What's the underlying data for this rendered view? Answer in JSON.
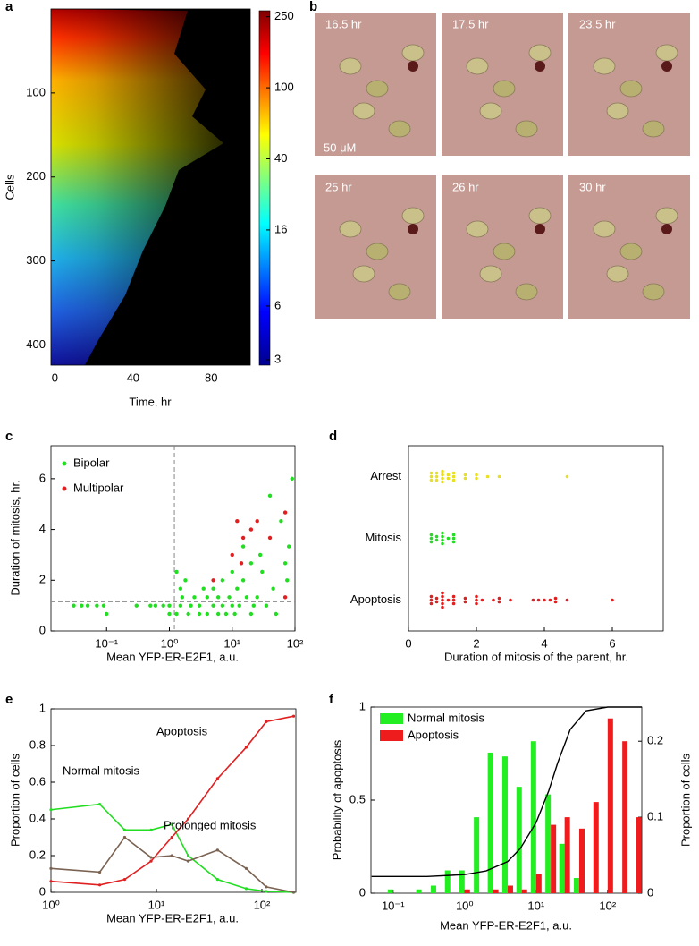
{
  "chart_data": [
    {
      "type": "heatmap",
      "panel": "a",
      "xlabel": "Time, hr",
      "ylabel": "Cells",
      "xlim": [
        -2,
        100
      ],
      "xticks": [
        0,
        40,
        80
      ],
      "ylim": [
        424,
        0
      ],
      "yticks": [
        100,
        200,
        300,
        400
      ],
      "colorbar": {
        "clim": [
          2.8,
          270
        ],
        "ticks": [
          3,
          6,
          16,
          40,
          100,
          250
        ],
        "log": true,
        "colormap": "jet"
      }
    },
    {
      "type": "scatter",
      "panel": "c",
      "xlabel": "Mean YFP-ER-E2F1, a.u.",
      "ylabel": "Duration of mitosis, hr.",
      "xlog": true,
      "xlim": [
        0.013,
        100
      ],
      "xticks": [
        {
          "value": 0.1,
          "label": "10⁻¹"
        },
        {
          "value": 1,
          "label": "10⁰"
        },
        {
          "value": 10,
          "label": "10¹"
        },
        {
          "value": 100,
          "label": "10²"
        }
      ],
      "ylim": [
        0,
        7.3
      ],
      "yticks": [
        0,
        2,
        4,
        6
      ],
      "legend": "upper left",
      "vline": 1.2,
      "hline": 1.15,
      "series": [
        {
          "name": "Bipolar",
          "color": "#22dd22",
          "x": [
            0.03,
            0.04,
            0.05,
            0.07,
            0.09,
            0.1,
            0.3,
            0.5,
            0.6,
            0.8,
            1,
            1,
            1.3,
            1.5,
            1.6,
            1.8,
            2,
            2.2,
            2.5,
            3,
            3,
            3.5,
            4,
            4,
            5,
            5,
            6,
            6,
            7,
            7,
            8,
            9,
            10,
            10,
            11,
            12,
            13,
            15,
            15,
            17,
            20,
            20,
            22,
            25,
            28,
            30,
            35,
            40,
            45,
            50,
            60,
            70,
            75,
            80,
            90,
            1.3,
            1.5
          ],
          "values": [
            1,
            1,
            1,
            1,
            1,
            0.67,
            1,
            1,
            1,
            1,
            1,
            0.67,
            0.67,
            1,
            1.33,
            2,
            0.67,
            1,
            1.33,
            0.67,
            1,
            1.67,
            1.33,
            0.67,
            1,
            1.67,
            0.67,
            1.33,
            1,
            2,
            0.67,
            1.33,
            1,
            2.33,
            0.67,
            1.67,
            1,
            2,
            3.33,
            1.33,
            0.67,
            2.67,
            1,
            1.33,
            3,
            2.33,
            1,
            5.33,
            1.67,
            0.67,
            4.33,
            2.67,
            2,
            3.33,
            6,
            2.33,
            1.67
          ]
        },
        {
          "name": "Multipolar",
          "color": "#e02020",
          "x": [
            5,
            10,
            12,
            14,
            15,
            20,
            25,
            40,
            70,
            70
          ],
          "values": [
            2,
            3,
            4.33,
            2.67,
            3.67,
            4,
            4.33,
            3.67,
            4.67,
            1.33
          ]
        }
      ]
    },
    {
      "type": "strip",
      "panel": "d",
      "xlabel": "Duration of mitosis of the parent, hr.",
      "xlim": [
        0,
        7.5
      ],
      "xticks": [
        0,
        2,
        4,
        6
      ],
      "series": [
        {
          "name": "Arrest",
          "color": "#e8e020",
          "values": [
            0.67,
            0.67,
            0.67,
            0.83,
            0.83,
            0.83,
            1,
            1,
            1,
            1,
            1.17,
            1.17,
            1.33,
            1.33,
            1.33,
            1.67,
            1.67,
            2,
            2,
            2.33,
            2.67,
            4.67
          ]
        },
        {
          "name": "Mitosis",
          "color": "#22dd22",
          "values": [
            0.67,
            0.67,
            0.67,
            0.83,
            0.83,
            1,
            1,
            1,
            1,
            1.17,
            1.33,
            1.33,
            1.33
          ]
        },
        {
          "name": "Apoptosis",
          "color": "#e02020",
          "values": [
            0.67,
            0.67,
            0.67,
            0.83,
            0.83,
            1,
            1,
            1,
            1,
            1,
            1.17,
            1.33,
            1.33,
            1.33,
            1.67,
            1.67,
            2,
            2,
            2,
            2.17,
            2.5,
            2.67,
            2.67,
            3,
            3.67,
            3.83,
            4,
            4.17,
            4.33,
            4.33,
            4.67,
            6
          ]
        }
      ]
    },
    {
      "type": "line",
      "panel": "e",
      "xlabel": "Mean YFP-ER-E2F1, a.u.",
      "ylabel": "Proportion of cells",
      "xlog": true,
      "xlim": [
        1,
        210
      ],
      "xticks": [
        {
          "value": 1,
          "label": "10⁰"
        },
        {
          "value": 10,
          "label": "10¹"
        },
        {
          "value": 100,
          "label": "10²"
        }
      ],
      "ylim": [
        0,
        1
      ],
      "yticks": [
        0,
        0.2,
        0.4,
        0.6,
        0.8,
        1
      ],
      "x": [
        1,
        2.9,
        5,
        8.9,
        14,
        20,
        38,
        71,
        110,
        200
      ],
      "series": [
        {
          "name": "Normal mitosis",
          "color": "#22dd22",
          "values": [
            0.45,
            0.48,
            0.34,
            0.34,
            0.37,
            0.2,
            0.07,
            0.02,
            0.005,
            0
          ]
        },
        {
          "name": "Apoptosis",
          "color": "#e02020",
          "values": [
            0.06,
            0.04,
            0.07,
            0.17,
            0.3,
            0.4,
            0.62,
            0.79,
            0.93,
            0.96
          ]
        },
        {
          "name": "Prolonged mitosis",
          "color": "#7a6352",
          "values": [
            0.13,
            0.11,
            0.3,
            0.19,
            0.2,
            0.17,
            0.23,
            0.13,
            0.03,
            0
          ]
        }
      ]
    },
    {
      "type": "bar",
      "panel": "f",
      "xlabel": "Mean YFP-ER-E2F1, a.u.",
      "ylabel": "Probability of apoptosis",
      "y2label": "Proportion of cells",
      "xlog": true,
      "xlim": [
        0.049,
        300
      ],
      "xticks": [
        {
          "value": 0.1,
          "label": "10⁻¹"
        },
        {
          "value": 1,
          "label": "10⁰"
        },
        {
          "value": 10,
          "label": "10¹"
        },
        {
          "value": 100,
          "label": "10²"
        }
      ],
      "ylim": [
        0,
        1
      ],
      "yticks": [
        0,
        0.5,
        1
      ],
      "y2lim": [
        0,
        0.245
      ],
      "y2ticks": [
        0,
        0.1,
        0.2
      ],
      "legend": "upper left",
      "x": [
        0.1,
        0.16,
        0.25,
        0.4,
        0.63,
        1,
        1.6,
        2.5,
        4,
        6.3,
        10,
        16,
        25,
        40,
        63,
        100,
        160,
        250
      ],
      "series": [
        {
          "name": "Normal mitosis",
          "color": "#22ee22",
          "axis": "y2",
          "values": [
            0.005,
            0,
            0.005,
            0.01,
            0.03,
            0.03,
            0.1,
            0.185,
            0.18,
            0.14,
            0.2,
            0.13,
            0.065,
            0.02,
            0,
            0,
            0,
            0
          ]
        },
        {
          "name": "Apoptosis",
          "color": "#ee1c1c",
          "axis": "y2",
          "values": [
            0,
            0,
            0,
            0,
            0,
            0.005,
            0,
            0.005,
            0.01,
            0.005,
            0.025,
            0.09,
            0.1,
            0.085,
            0.12,
            0.23,
            0.2,
            0.1
          ]
        }
      ],
      "line": {
        "color": "#000000",
        "x": [
          0.05,
          0.3,
          1,
          2,
          4,
          6,
          10,
          15,
          20,
          30,
          50,
          100,
          300
        ],
        "values": [
          0.09,
          0.09,
          0.1,
          0.12,
          0.17,
          0.24,
          0.38,
          0.55,
          0.7,
          0.88,
          0.98,
          1,
          1
        ]
      }
    }
  ],
  "panel_b": {
    "panel": "b",
    "frames": [
      "16.5 hr",
      "17.5 hr",
      "23.5 hr",
      "25 hr",
      "26 hr",
      "30 hr"
    ],
    "scale_bar": "50 μM"
  }
}
